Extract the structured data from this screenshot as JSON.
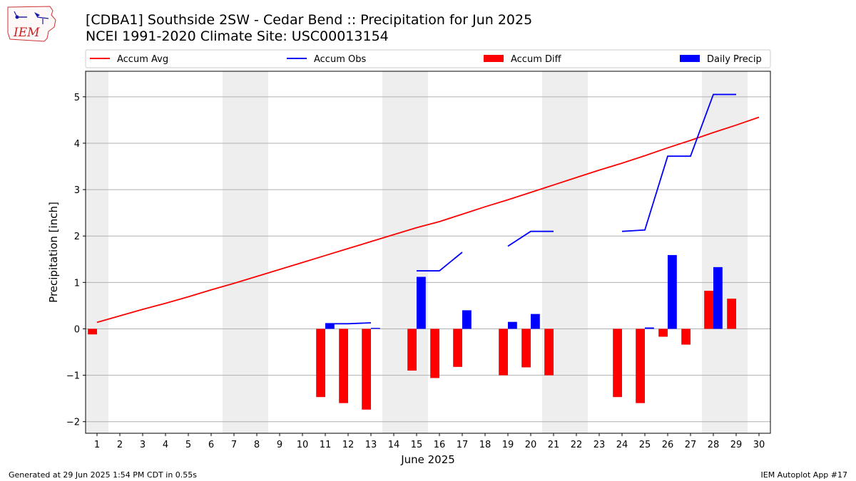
{
  "header": {
    "title": "[CDBA1] Southside 2SW - Cedar Bend :: Precipitation for Jun 2025",
    "subtitle": "NCEI 1991-2020 Climate Site: USC00013154"
  },
  "logo": {
    "text": "IEM",
    "icon": "iem-iowa-logo-icon"
  },
  "footer": {
    "left": "Generated at 29 Jun 2025 1:54 PM CDT in 0.55s",
    "right": "IEM Autoplot App #17"
  },
  "colors": {
    "avg": "#ff0000",
    "obs": "#0000ff",
    "diff": "#ff0000",
    "daily": "#0000ff",
    "weekend": "#eeeeee",
    "grid": "#b0b0b0"
  },
  "chart_data": {
    "type": "bar",
    "xlabel": "June 2025",
    "ylabel": "Precipitation [inch]",
    "xlim": [
      0.5,
      30.5
    ],
    "ylim": [
      -2.25,
      5.55
    ],
    "yticks": [
      -2,
      -1,
      0,
      1,
      2,
      3,
      4,
      5
    ],
    "ytick_labels": [
      "−2",
      "−1",
      "0",
      "1",
      "2",
      "3",
      "4",
      "5"
    ],
    "x": [
      1,
      2,
      3,
      4,
      5,
      6,
      7,
      8,
      9,
      10,
      11,
      12,
      13,
      14,
      15,
      16,
      17,
      18,
      19,
      20,
      21,
      22,
      23,
      24,
      25,
      26,
      27,
      28,
      29,
      30
    ],
    "xtick_labels": [
      "1",
      "2",
      "3",
      "4",
      "5",
      "6",
      "7",
      "8",
      "9",
      "10",
      "11",
      "12",
      "13",
      "14",
      "15",
      "16",
      "17",
      "18",
      "19",
      "20",
      "21",
      "22",
      "23",
      "24",
      "25",
      "26",
      "27",
      "28",
      "29",
      "30"
    ],
    "grid": "horizontal",
    "weekend_days": [
      1,
      7,
      8,
      14,
      15,
      21,
      22,
      28,
      29
    ],
    "legend": {
      "placement": "top",
      "entries": [
        {
          "label": "Accum Avg",
          "kind": "line",
          "color": "#ff0000"
        },
        {
          "label": "Accum Obs",
          "kind": "line",
          "color": "#0000ff"
        },
        {
          "label": "Accum Diff",
          "kind": "bar",
          "color": "#ff0000"
        },
        {
          "label": "Daily Precip",
          "kind": "bar",
          "color": "#0000ff"
        }
      ]
    },
    "series": [
      {
        "name": "Accum Avg",
        "kind": "line",
        "x": [
          1,
          2,
          3,
          4,
          5,
          6,
          7,
          8,
          9,
          10,
          11,
          12,
          13,
          14,
          15,
          16,
          17,
          18,
          19,
          20,
          21,
          22,
          23,
          24,
          25,
          26,
          27,
          28,
          29,
          30
        ],
        "values": [
          0.14,
          0.28,
          0.42,
          0.55,
          0.69,
          0.84,
          0.98,
          1.13,
          1.28,
          1.43,
          1.58,
          1.73,
          1.88,
          2.03,
          2.18,
          2.31,
          2.47,
          2.63,
          2.78,
          2.94,
          3.1,
          3.26,
          3.42,
          3.57,
          3.73,
          3.9,
          4.06,
          4.23,
          4.39,
          4.56
        ]
      },
      {
        "name": "Accum Obs",
        "kind": "line",
        "segments": [
          {
            "x": [
              11,
              12,
              13
            ],
            "values": [
              0.11,
              0.11,
              0.13
            ]
          },
          {
            "x": [
              15,
              16,
              17
            ],
            "values": [
              1.25,
              1.25,
              1.65
            ]
          },
          {
            "x": [
              19,
              20,
              21
            ],
            "values": [
              1.78,
              2.1,
              2.1
            ]
          },
          {
            "x": [
              24,
              25,
              26,
              27,
              28,
              29
            ],
            "values": [
              2.1,
              2.13,
              3.72,
              3.72,
              5.05,
              5.05
            ]
          }
        ]
      },
      {
        "name": "Accum Diff",
        "kind": "bar",
        "x": [
          1,
          11,
          12,
          13,
          15,
          16,
          17,
          19,
          20,
          21,
          24,
          25,
          26,
          27,
          28,
          29
        ],
        "values": [
          -0.12,
          -1.47,
          -1.6,
          -1.74,
          -0.9,
          -1.06,
          -0.82,
          -1.0,
          -0.83,
          -1.0,
          -1.47,
          -1.6,
          -0.17,
          -0.34,
          0.82,
          0.65
        ]
      },
      {
        "name": "Daily Precip",
        "kind": "bar",
        "x": [
          11,
          13,
          15,
          17,
          19,
          20,
          25,
          26,
          28
        ],
        "values": [
          0.11,
          0.02,
          1.12,
          0.4,
          0.15,
          0.32,
          0.03,
          1.59,
          1.33
        ]
      }
    ]
  }
}
